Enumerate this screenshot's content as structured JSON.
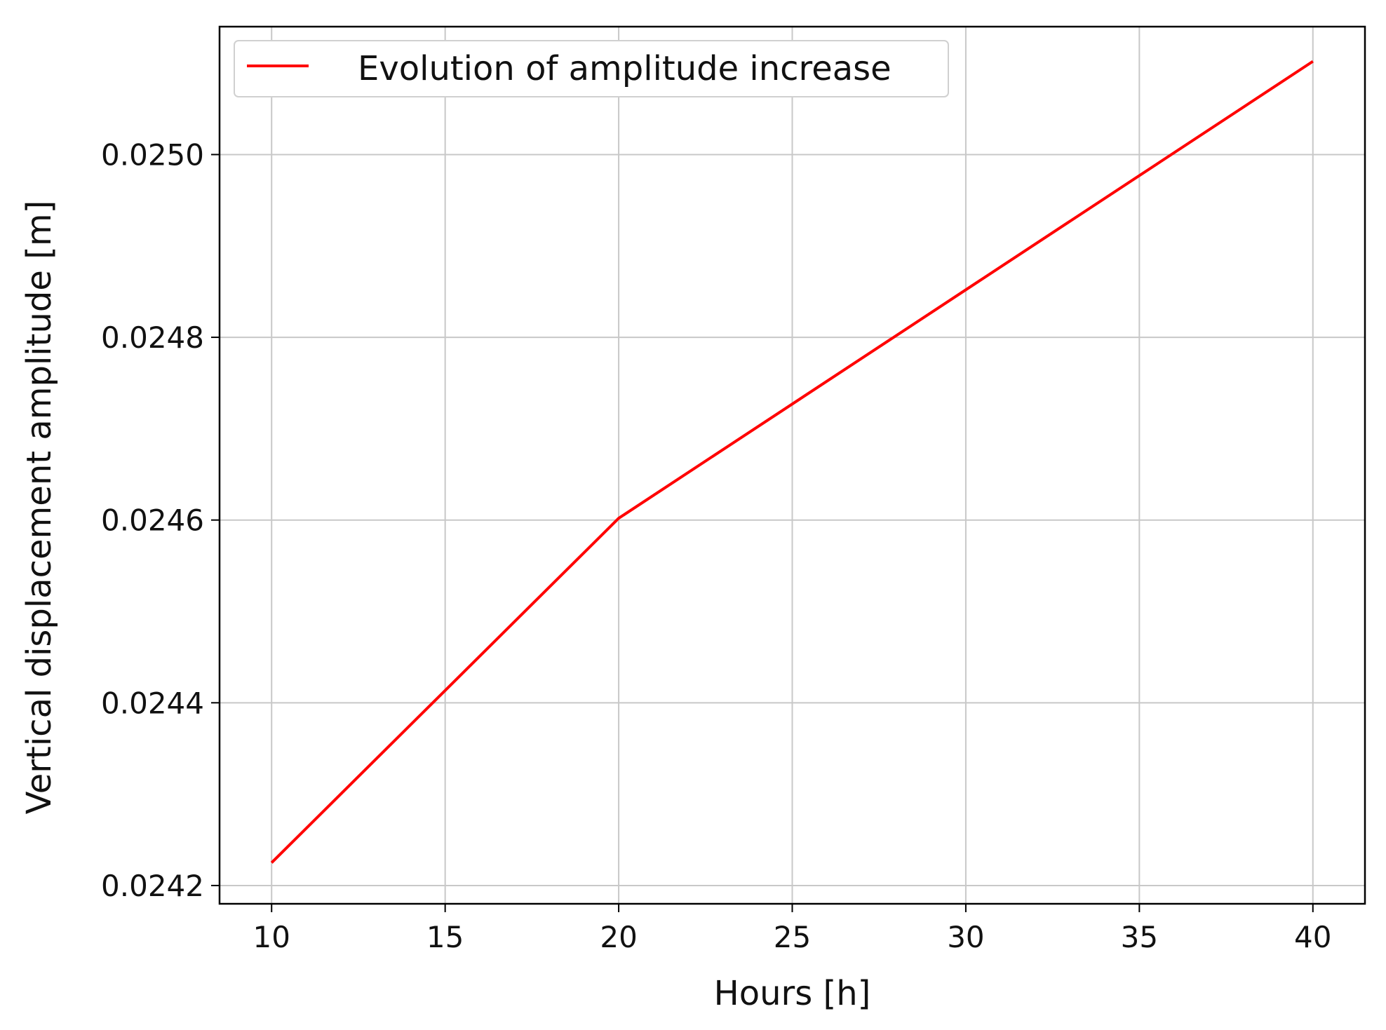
{
  "chart_data": {
    "type": "line",
    "title": "",
    "xlabel": "Hours [h]",
    "ylabel": "Vertical displacement amplitude [m]",
    "xlim": [
      8.5,
      41.5
    ],
    "ylim": [
      0.02418,
      0.02514
    ],
    "x_ticks": [
      10,
      15,
      20,
      25,
      30,
      35,
      40
    ],
    "y_ticks": [
      0.0242,
      0.0244,
      0.0246,
      0.0248,
      0.025
    ],
    "x_tick_labels": [
      "10",
      "15",
      "20",
      "25",
      "30",
      "35",
      "40"
    ],
    "y_tick_labels": [
      "0.0242",
      "0.0244",
      "0.0246",
      "0.0248",
      "0.0250"
    ],
    "grid": true,
    "legend_position": "top-left",
    "series": [
      {
        "name": "Evolution of amplitude increase",
        "color": "#ff0000",
        "x": [
          10,
          20,
          40
        ],
        "y": [
          0.024225,
          0.024602,
          0.025102
        ]
      }
    ]
  }
}
